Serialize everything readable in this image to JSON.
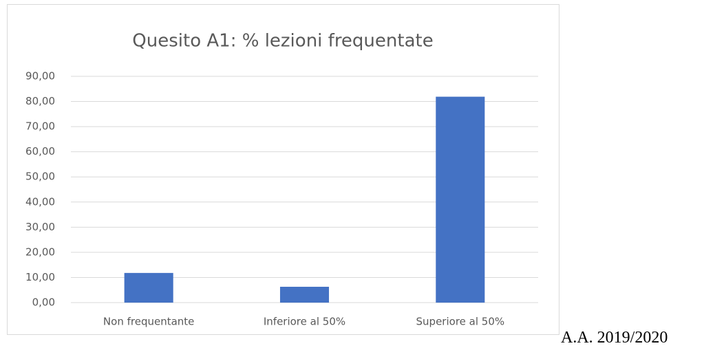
{
  "chart_data": {
    "type": "bar",
    "title": "Quesito A1: % lezioni frequentate",
    "categories": [
      "Non frequentante",
      "Inferiore al 50%",
      "Superiore al 50%"
    ],
    "values": [
      11.8,
      6.3,
      81.9
    ],
    "color": "#4472c4",
    "ylim": [
      0,
      90
    ],
    "yticks": [
      {
        "value": 0,
        "label": "0,00"
      },
      {
        "value": 10,
        "label": "10,00"
      },
      {
        "value": 20,
        "label": "20,00"
      },
      {
        "value": 30,
        "label": "30,00"
      },
      {
        "value": 40,
        "label": "40,00"
      },
      {
        "value": 50,
        "label": "50,00"
      },
      {
        "value": 60,
        "label": "60,00"
      },
      {
        "value": 70,
        "label": "70,00"
      },
      {
        "value": 80,
        "label": "80,00"
      },
      {
        "value": 90,
        "label": "90,00"
      }
    ],
    "grid": true
  },
  "caption": "A.A. 2019/2020"
}
